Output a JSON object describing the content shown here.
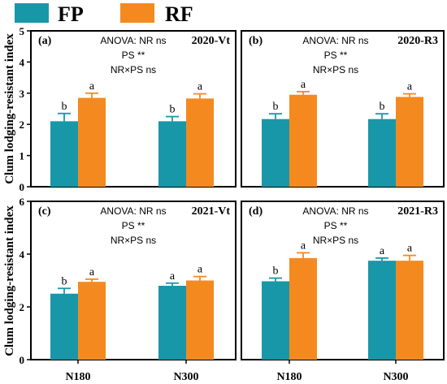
{
  "legend": [
    {
      "name": "FP",
      "color": "#1897a8"
    },
    {
      "name": "RF",
      "color": "#f48a1f"
    }
  ],
  "ylabel": "Clum lodging-resistant index",
  "categories": [
    "N180",
    "N300"
  ],
  "chart_data": [
    {
      "type": "bar",
      "panel": "(a)",
      "title": "2020-Vt",
      "annotations": [
        "ANOVA: NR ns",
        "PS **",
        "NR×PS ns"
      ],
      "ylim": [
        0,
        5
      ],
      "yticks": [
        0,
        1,
        2,
        3,
        4,
        5
      ],
      "categories": [
        "N180",
        "N300"
      ],
      "series": [
        {
          "name": "FP",
          "values": [
            2.1,
            2.1
          ],
          "errors": [
            0.25,
            0.15
          ],
          "letters": [
            "b",
            "b"
          ]
        },
        {
          "name": "RF",
          "values": [
            2.85,
            2.83
          ],
          "errors": [
            0.15,
            0.15
          ],
          "letters": [
            "a",
            "a"
          ]
        }
      ]
    },
    {
      "type": "bar",
      "panel": "(b)",
      "title": "2020-R3",
      "annotations": [
        "ANOVA: NR ns",
        "PS **",
        "NR×PS ns"
      ],
      "ylim": [
        0,
        5
      ],
      "yticks": [
        0,
        1,
        2,
        3,
        4,
        5
      ],
      "categories": [
        "N180",
        "N300"
      ],
      "series": [
        {
          "name": "FP",
          "values": [
            2.17,
            2.17
          ],
          "errors": [
            0.17,
            0.17
          ],
          "letters": [
            "b",
            "b"
          ]
        },
        {
          "name": "RF",
          "values": [
            2.95,
            2.88
          ],
          "errors": [
            0.1,
            0.1
          ],
          "letters": [
            "a",
            "a"
          ]
        }
      ]
    },
    {
      "type": "bar",
      "panel": "(c)",
      "title": "2021-Vt",
      "annotations": [
        "ANOVA: NR ns",
        "PS **",
        "NR×PS ns"
      ],
      "ylim": [
        0,
        6
      ],
      "yticks": [
        0,
        2,
        4,
        6
      ],
      "categories": [
        "N180",
        "N300"
      ],
      "series": [
        {
          "name": "FP",
          "values": [
            2.5,
            2.8
          ],
          "errors": [
            0.2,
            0.1
          ],
          "letters": [
            "b",
            "a"
          ]
        },
        {
          "name": "RF",
          "values": [
            2.95,
            3.0
          ],
          "errors": [
            0.1,
            0.15
          ],
          "letters": [
            "a",
            "a"
          ]
        }
      ]
    },
    {
      "type": "bar",
      "panel": "(d)",
      "title": "2021-R3",
      "annotations": [
        "ANOVA: NR ns",
        "PS **",
        "NR×PS ns"
      ],
      "ylim": [
        0,
        6
      ],
      "yticks": [
        0,
        2,
        4,
        6
      ],
      "categories": [
        "N180",
        "N300"
      ],
      "series": [
        {
          "name": "FP",
          "values": [
            2.97,
            3.75
          ],
          "errors": [
            0.12,
            0.1
          ],
          "letters": [
            "b",
            "a"
          ]
        },
        {
          "name": "RF",
          "values": [
            3.85,
            3.75
          ],
          "errors": [
            0.2,
            0.2
          ],
          "letters": [
            "a",
            "a"
          ]
        }
      ]
    }
  ]
}
